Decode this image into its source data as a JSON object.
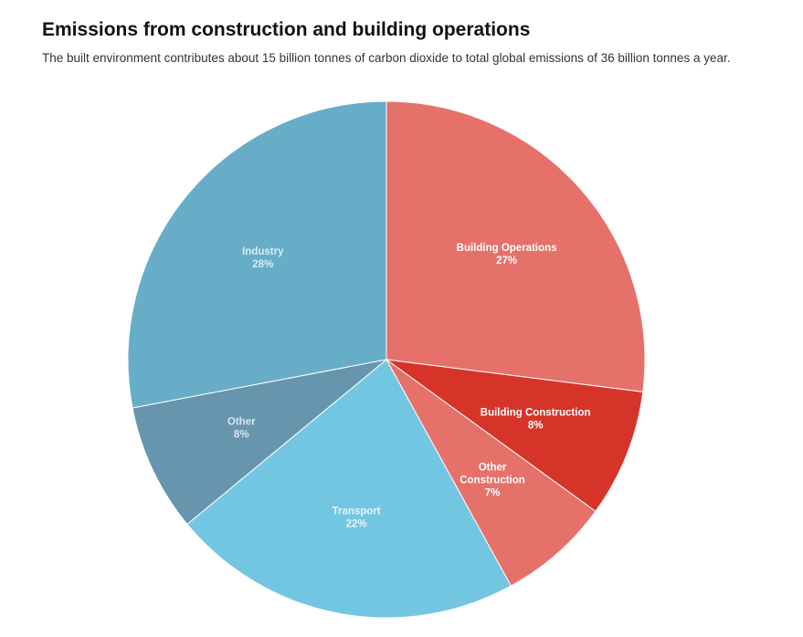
{
  "header": {
    "title": "Emissions from construction and building operations",
    "subtitle": "The built environment contributes about 15 billion tonnes of carbon dioxide to total global  emissions of 36 billion tonnes a year."
  },
  "chart_data": {
    "type": "pie",
    "title": "Emissions from construction and building operations",
    "subtitle": "The built environment contributes about 15 billion tonnes of carbon dioxide to total global  emissions of 36 billion tonnes a year.",
    "start": "12 o'clock",
    "direction": "clockwise",
    "slices": [
      {
        "label": [
          "Building Operations"
        ],
        "value": 27,
        "value_label": "27%",
        "color": "#e5716a",
        "label_color": "#ffffff"
      },
      {
        "label": [
          "Building Construction"
        ],
        "value": 8,
        "value_label": "8%",
        "color": "#d63429",
        "label_color": "#ffffff"
      },
      {
        "label": [
          "Other",
          "Construction"
        ],
        "value": 7,
        "value_label": "7%",
        "color": "#e5716a",
        "label_color": "#ffffff"
      },
      {
        "label": [
          "Transport"
        ],
        "value": 22,
        "value_label": "22%",
        "color": "#73c6e1",
        "label_color": "#e8f4f8"
      },
      {
        "label": [
          "Other"
        ],
        "value": 8,
        "value_label": "8%",
        "color": "#6695ad",
        "label_color": "#d9e6ee"
      },
      {
        "label": [
          "Industry"
        ],
        "value": 28,
        "value_label": "28%",
        "color": "#67adc8",
        "label_color": "#d9ecf3"
      }
    ]
  }
}
